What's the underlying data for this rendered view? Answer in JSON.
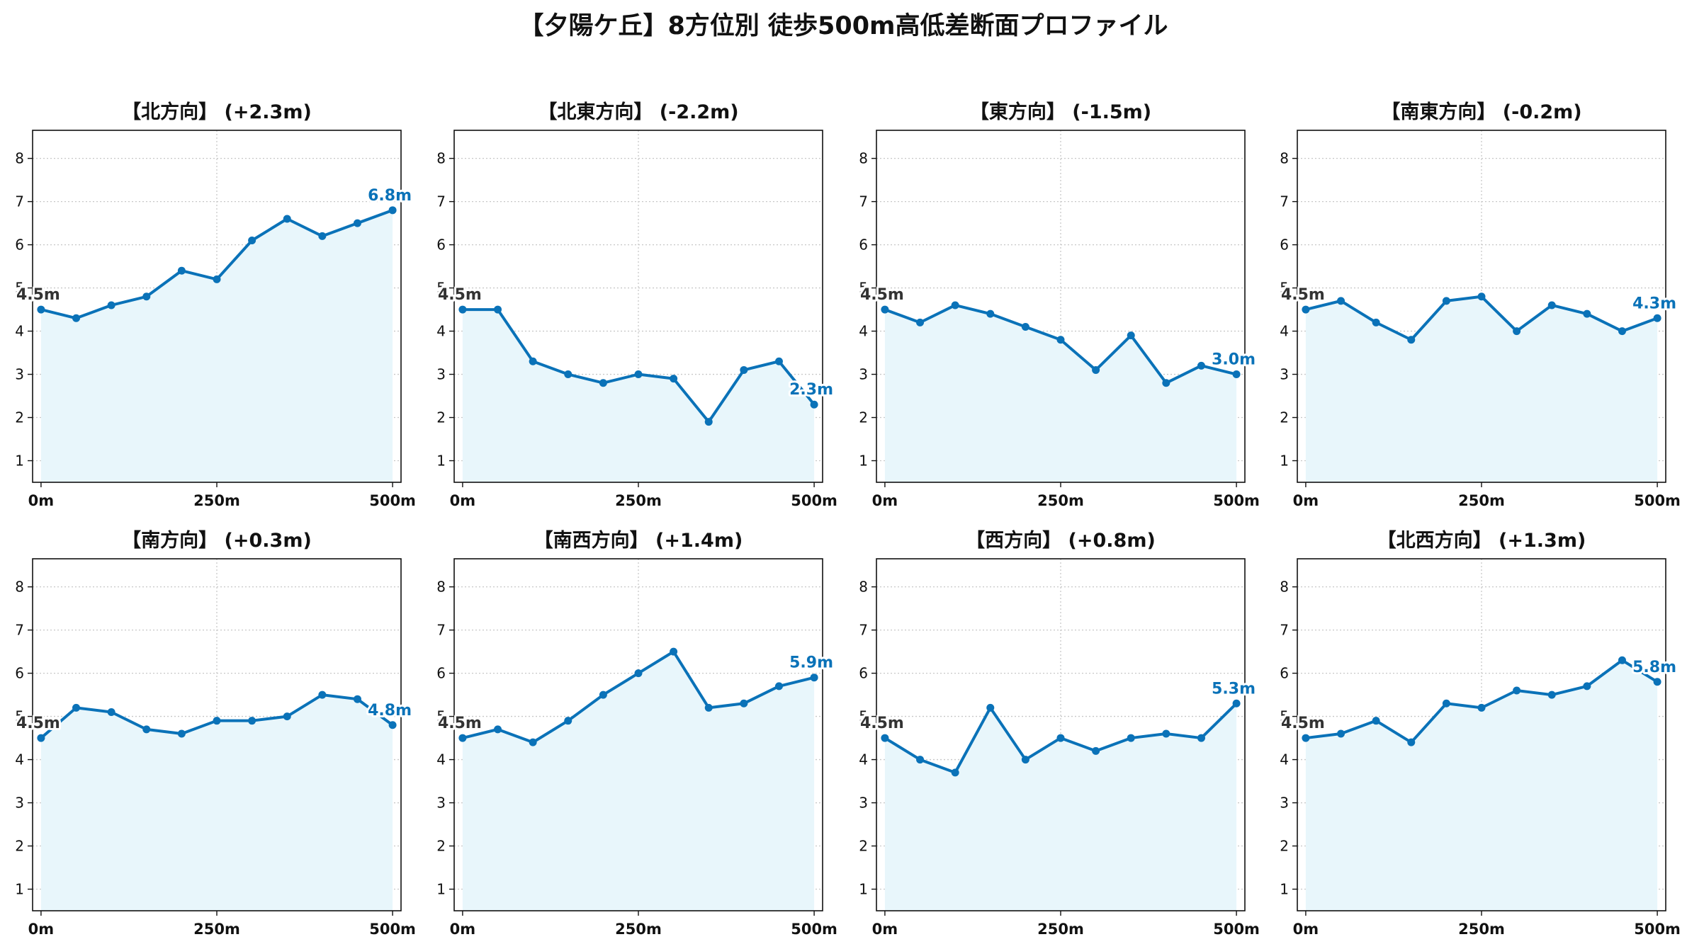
{
  "title": "【夕陽ケ丘】8方位別 徒歩500m高低差断面プロファイル",
  "colors": {
    "line": "#0a72b8",
    "fill": "#e8f6fb",
    "grid": "#c8c8c8",
    "axis": "#111111"
  },
  "chart_data": [
    {
      "type": "area",
      "title": "【北方向】 (+2.3m)",
      "x": [
        0,
        50,
        100,
        150,
        200,
        250,
        300,
        350,
        400,
        450,
        500
      ],
      "y": [
        4.5,
        4.3,
        4.6,
        4.8,
        5.4,
        5.2,
        6.1,
        6.6,
        6.2,
        6.5,
        6.8
      ],
      "start_label": "4.5m",
      "end_label": "6.8m",
      "xticks": [
        "0m",
        "250m",
        "500m"
      ],
      "yticks": [
        "1",
        "2",
        "3",
        "4",
        "5",
        "6",
        "7",
        "8"
      ],
      "ylim": [
        0.5,
        8.65
      ],
      "xlim": [
        -12,
        512
      ],
      "grid": true
    },
    {
      "type": "area",
      "title": "【北東方向】 (-2.2m)",
      "x": [
        0,
        50,
        100,
        150,
        200,
        250,
        300,
        350,
        400,
        450,
        500
      ],
      "y": [
        4.5,
        4.5,
        3.3,
        3.0,
        2.8,
        3.0,
        2.9,
        1.9,
        3.1,
        3.3,
        2.3
      ],
      "start_label": "4.5m",
      "end_label": "2.3m",
      "xticks": [
        "0m",
        "250m",
        "500m"
      ],
      "yticks": [
        "1",
        "2",
        "3",
        "4",
        "5",
        "6",
        "7",
        "8"
      ],
      "ylim": [
        0.5,
        8.65
      ],
      "xlim": [
        -12,
        512
      ],
      "grid": true
    },
    {
      "type": "area",
      "title": "【東方向】 (-1.5m)",
      "x": [
        0,
        50,
        100,
        150,
        200,
        250,
        300,
        350,
        400,
        450,
        500
      ],
      "y": [
        4.5,
        4.2,
        4.6,
        4.4,
        4.1,
        3.8,
        3.1,
        3.9,
        2.8,
        3.2,
        3.0
      ],
      "start_label": "4.5m",
      "end_label": "3.0m",
      "xticks": [
        "0m",
        "250m",
        "500m"
      ],
      "yticks": [
        "1",
        "2",
        "3",
        "4",
        "5",
        "6",
        "7",
        "8"
      ],
      "ylim": [
        0.5,
        8.65
      ],
      "xlim": [
        -12,
        512
      ],
      "grid": true
    },
    {
      "type": "area",
      "title": "【南東方向】 (-0.2m)",
      "x": [
        0,
        50,
        100,
        150,
        200,
        250,
        300,
        350,
        400,
        450,
        500
      ],
      "y": [
        4.5,
        4.7,
        4.2,
        3.8,
        4.7,
        4.8,
        4.0,
        4.6,
        4.4,
        4.0,
        4.3
      ],
      "start_label": "4.5m",
      "end_label": "4.3m",
      "xticks": [
        "0m",
        "250m",
        "500m"
      ],
      "yticks": [
        "1",
        "2",
        "3",
        "4",
        "5",
        "6",
        "7",
        "8"
      ],
      "ylim": [
        0.5,
        8.65
      ],
      "xlim": [
        -12,
        512
      ],
      "grid": true
    },
    {
      "type": "area",
      "title": "【南方向】 (+0.3m)",
      "x": [
        0,
        50,
        100,
        150,
        200,
        250,
        300,
        350,
        400,
        450,
        500
      ],
      "y": [
        4.5,
        5.2,
        5.1,
        4.7,
        4.6,
        4.9,
        4.9,
        5.0,
        5.5,
        5.4,
        4.8
      ],
      "start_label": "4.5m",
      "end_label": "4.8m",
      "xticks": [
        "0m",
        "250m",
        "500m"
      ],
      "yticks": [
        "1",
        "2",
        "3",
        "4",
        "5",
        "6",
        "7",
        "8"
      ],
      "ylim": [
        0.5,
        8.65
      ],
      "xlim": [
        -12,
        512
      ],
      "grid": true
    },
    {
      "type": "area",
      "title": "【南西方向】 (+1.4m)",
      "x": [
        0,
        50,
        100,
        150,
        200,
        250,
        300,
        350,
        400,
        450,
        500
      ],
      "y": [
        4.5,
        4.7,
        4.4,
        4.9,
        5.5,
        6.0,
        6.5,
        5.2,
        5.3,
        5.7,
        5.9
      ],
      "start_label": "4.5m",
      "end_label": "5.9m",
      "xticks": [
        "0m",
        "250m",
        "500m"
      ],
      "yticks": [
        "1",
        "2",
        "3",
        "4",
        "5",
        "6",
        "7",
        "8"
      ],
      "ylim": [
        0.5,
        8.65
      ],
      "xlim": [
        -12,
        512
      ],
      "grid": true
    },
    {
      "type": "area",
      "title": "【西方向】 (+0.8m)",
      "x": [
        0,
        50,
        100,
        150,
        200,
        250,
        300,
        350,
        400,
        450,
        500
      ],
      "y": [
        4.5,
        4.0,
        3.7,
        5.2,
        4.0,
        4.5,
        4.2,
        4.5,
        4.6,
        4.5,
        5.3
      ],
      "start_label": "4.5m",
      "end_label": "5.3m",
      "xticks": [
        "0m",
        "250m",
        "500m"
      ],
      "yticks": [
        "1",
        "2",
        "3",
        "4",
        "5",
        "6",
        "7",
        "8"
      ],
      "ylim": [
        0.5,
        8.65
      ],
      "xlim": [
        -12,
        512
      ],
      "grid": true
    },
    {
      "type": "area",
      "title": "【北西方向】 (+1.3m)",
      "x": [
        0,
        50,
        100,
        150,
        200,
        250,
        300,
        350,
        400,
        450,
        500
      ],
      "y": [
        4.5,
        4.6,
        4.9,
        4.4,
        5.3,
        5.2,
        5.6,
        5.5,
        5.7,
        6.3,
        5.8
      ],
      "start_label": "4.5m",
      "end_label": "5.8m",
      "xticks": [
        "0m",
        "250m",
        "500m"
      ],
      "yticks": [
        "1",
        "2",
        "3",
        "4",
        "5",
        "6",
        "7",
        "8"
      ],
      "ylim": [
        0.5,
        8.65
      ],
      "xlim": [
        -12,
        512
      ],
      "grid": true
    }
  ]
}
